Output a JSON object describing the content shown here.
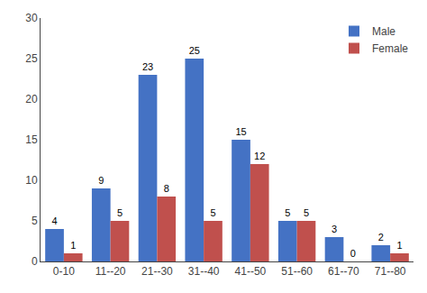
{
  "chart_data": {
    "type": "bar",
    "categories": [
      "0-10",
      "11--20",
      "21--30",
      "31--40",
      "41--50",
      "51--60",
      "61--70",
      "71--80"
    ],
    "series": [
      {
        "name": "Male",
        "color": "#4472C4",
        "values": [
          4,
          9,
          23,
          25,
          15,
          5,
          3,
          2
        ]
      },
      {
        "name": "Female",
        "color": "#C0504D",
        "values": [
          1,
          5,
          8,
          5,
          12,
          5,
          0,
          1
        ]
      }
    ],
    "ylim": [
      0,
      30
    ],
    "yticks": [
      0,
      5,
      10,
      15,
      20,
      25,
      30
    ],
    "grid": false,
    "legend": "upper right",
    "data_labels": true
  }
}
